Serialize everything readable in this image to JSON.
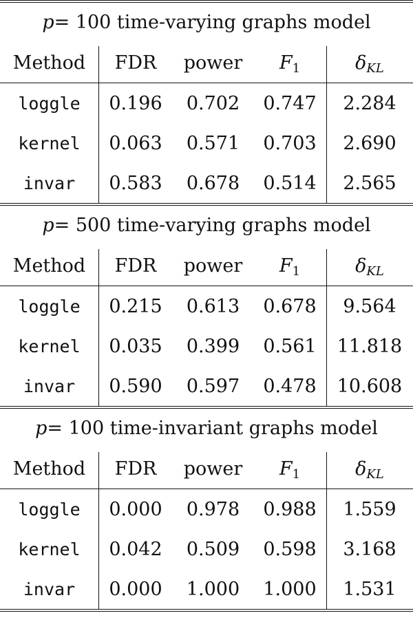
{
  "columns": {
    "method": "Method",
    "fdr": "FDR",
    "power": "power",
    "f1_base": "F",
    "f1_sub": "1",
    "kl_base": "δ",
    "kl_sub": "KL"
  },
  "sections": [
    {
      "title_var": "p",
      "title_rest": " = 100 time-varying graphs model",
      "rows": [
        {
          "method": "loggle",
          "fdr": "0.196",
          "power": "0.702",
          "f1": "0.747",
          "kl": "2.284"
        },
        {
          "method": "kernel",
          "fdr": "0.063",
          "power": "0.571",
          "f1": "0.703",
          "kl": "2.690"
        },
        {
          "method": "invar",
          "fdr": "0.583",
          "power": "0.678",
          "f1": "0.514",
          "kl": "2.565"
        }
      ]
    },
    {
      "title_var": "p",
      "title_rest": " = 500 time-varying graphs model",
      "rows": [
        {
          "method": "loggle",
          "fdr": "0.215",
          "power": "0.613",
          "f1": "0.678",
          "kl": "9.564"
        },
        {
          "method": "kernel",
          "fdr": "0.035",
          "power": "0.399",
          "f1": "0.561",
          "kl": "11.818"
        },
        {
          "method": "invar",
          "fdr": "0.590",
          "power": "0.597",
          "f1": "0.478",
          "kl": "10.608"
        }
      ]
    },
    {
      "title_var": "p",
      "title_rest": " = 100 time-invariant graphs model",
      "rows": [
        {
          "method": "loggle",
          "fdr": "0.000",
          "power": "0.978",
          "f1": "0.988",
          "kl": "1.559"
        },
        {
          "method": "kernel",
          "fdr": "0.042",
          "power": "0.509",
          "f1": "0.598",
          "kl": "3.168"
        },
        {
          "method": "invar",
          "fdr": "0.000",
          "power": "1.000",
          "f1": "1.000",
          "kl": "1.531"
        }
      ]
    }
  ]
}
